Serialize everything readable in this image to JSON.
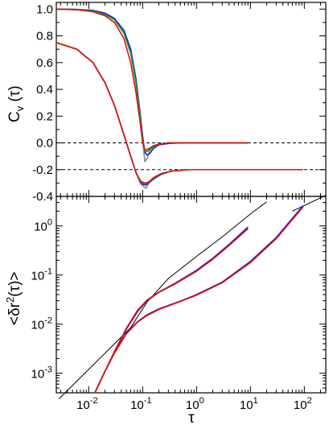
{
  "chart_data": [
    {
      "type": "line",
      "panel": "top",
      "ylabel": "C_v (τ)",
      "ylabel_parts": {
        "main": "C",
        "sub": "v",
        "arg": " (τ)"
      },
      "xscale": "log",
      "xlim": [
        0.0025,
        250
      ],
      "ylim": [
        -0.4,
        1.05
      ],
      "yticks": [
        -0.4,
        -0.2,
        0.0,
        0.2,
        0.4,
        0.6,
        0.8,
        1.0
      ],
      "ytick_labels": [
        "-0.4",
        "-0.2",
        "0.0",
        "0.2",
        "0.4",
        "0.6",
        "0.8",
        "1.0"
      ],
      "reference_lines": [
        {
          "y": 0.0,
          "style": "dashed"
        },
        {
          "y": -0.2,
          "style": "dashed"
        }
      ],
      "groups": [
        {
          "offset": 0.0,
          "tau": [
            0.0025,
            0.006,
            0.012,
            0.02,
            0.03,
            0.045,
            0.06,
            0.075,
            0.09,
            0.1,
            0.11,
            0.12,
            0.135,
            0.16,
            0.2,
            0.3,
            0.5,
            1.0,
            3.0,
            9.0
          ],
          "series": [
            {
              "color": "#888888",
              "values": [
                1.0,
                0.998,
                0.99,
                0.97,
                0.93,
                0.84,
                0.7,
                0.48,
                0.22,
                0.02,
                -0.14,
                -0.12,
                -0.06,
                -0.02,
                -0.01,
                0.0,
                0.0,
                0.0,
                0.0,
                0.0
              ]
            },
            {
              "color": "#1f1fd6",
              "values": [
                1.0,
                0.998,
                0.99,
                0.97,
                0.93,
                0.84,
                0.7,
                0.48,
                0.22,
                0.05,
                -0.07,
                -0.09,
                -0.08,
                -0.04,
                -0.015,
                -0.005,
                0.0,
                0.0,
                0.0,
                0.0
              ]
            },
            {
              "color": "#1a9e1a",
              "values": [
                1.0,
                0.997,
                0.985,
                0.96,
                0.92,
                0.82,
                0.67,
                0.45,
                0.2,
                0.02,
                -0.06,
                -0.065,
                -0.05,
                -0.03,
                -0.01,
                0.0,
                0.0,
                0.0,
                0.0,
                0.0
              ]
            },
            {
              "color": "#e01010",
              "values": [
                1.0,
                0.995,
                0.98,
                0.95,
                0.9,
                0.78,
                0.6,
                0.38,
                0.15,
                0.0,
                -0.05,
                -0.05,
                -0.04,
                -0.02,
                -0.01,
                0.0,
                0.0,
                0.0,
                0.0,
                0.0
              ]
            }
          ]
        },
        {
          "offset": -0.2,
          "tau": [
            0.0025,
            0.006,
            0.012,
            0.02,
            0.03,
            0.045,
            0.06,
            0.075,
            0.09,
            0.1,
            0.115,
            0.13,
            0.16,
            0.22,
            0.35,
            0.7,
            2.0,
            10.0,
            40.0,
            95.0
          ],
          "series": [
            {
              "color": "#888888",
              "values": [
                0.95,
                0.9,
                0.8,
                0.65,
                0.48,
                0.26,
                0.1,
                -0.02,
                -0.1,
                -0.12,
                -0.14,
                -0.1,
                -0.06,
                -0.03,
                -0.01,
                0.0,
                0.0,
                0.0,
                0.0,
                0.0
              ]
            },
            {
              "color": "#1f1fd6",
              "values": [
                0.95,
                0.9,
                0.8,
                0.65,
                0.48,
                0.26,
                0.1,
                -0.02,
                -0.09,
                -0.11,
                -0.115,
                -0.1,
                -0.07,
                -0.035,
                -0.01,
                0.0,
                0.0,
                0.0,
                0.0,
                0.0
              ]
            },
            {
              "color": "#1a9e1a",
              "values": [
                0.95,
                0.9,
                0.8,
                0.65,
                0.48,
                0.26,
                0.1,
                -0.02,
                -0.085,
                -0.1,
                -0.105,
                -0.095,
                -0.065,
                -0.03,
                -0.01,
                0.0,
                0.0,
                0.0,
                0.0,
                0.0
              ]
            },
            {
              "color": "#e01010",
              "values": [
                0.95,
                0.9,
                0.8,
                0.65,
                0.48,
                0.26,
                0.1,
                -0.02,
                -0.08,
                -0.095,
                -0.1,
                -0.09,
                -0.06,
                -0.03,
                -0.01,
                0.0,
                0.0,
                0.0,
                0.0,
                0.0
              ]
            }
          ]
        }
      ]
    },
    {
      "type": "line",
      "panel": "bottom",
      "ylabel": "<δr²(τ)>",
      "ylabel_parts": {
        "pre": "<δr",
        "sup": "2",
        "post": "(τ)>"
      },
      "xlabel": "τ",
      "xscale": "log",
      "yscale": "log",
      "xlim": [
        0.0025,
        250
      ],
      "ylim": [
        0.0004,
        4
      ],
      "xticks": [
        0.01,
        0.1,
        1,
        10,
        100
      ],
      "xtick_labels": [
        {
          "base": "10",
          "exp": "-2"
        },
        {
          "base": "10",
          "exp": "-1"
        },
        {
          "base": "10",
          "exp": "0"
        },
        {
          "base": "10",
          "exp": "1"
        },
        {
          "base": "10",
          "exp": "2"
        }
      ],
      "yticks": [
        0.001,
        0.01,
        0.1,
        1
      ],
      "ytick_labels": [
        {
          "base": "10",
          "exp": "-3"
        },
        {
          "base": "10",
          "exp": "-2"
        },
        {
          "base": "10",
          "exp": "-1"
        },
        {
          "base": "10",
          "exp": "0"
        }
      ],
      "reference_lines": [
        {
          "color": "#000000",
          "x": [
            0.0028,
            0.06,
            0.12,
            0.3,
            1.0,
            3.0,
            10.0,
            20.0
          ],
          "values": [
            0.0003,
            0.0085,
            0.028,
            0.085,
            0.24,
            0.6,
            1.75,
            3.1
          ]
        },
        {
          "color": "#000000",
          "x": [
            60,
            250
          ],
          "values": [
            2.0,
            4.2
          ]
        }
      ],
      "groups": [
        {
          "x": [
            0.013,
            0.02,
            0.03,
            0.05,
            0.08,
            0.12,
            0.2,
            0.4,
            1.0,
            2.0,
            4.0,
            9.0
          ],
          "series": [
            {
              "color": "#888888",
              "values": [
                0.0004,
                0.0011,
                0.0027,
                0.008,
                0.018,
                0.03,
                0.044,
                0.066,
                0.12,
                0.21,
                0.4,
                0.9
              ]
            },
            {
              "color": "#1f1fd6",
              "values": [
                0.0004,
                0.0011,
                0.0027,
                0.008,
                0.018,
                0.03,
                0.045,
                0.068,
                0.125,
                0.22,
                0.42,
                0.95
              ]
            },
            {
              "color": "#e01010",
              "values": [
                0.0004,
                0.0011,
                0.0028,
                0.0083,
                0.019,
                0.031,
                0.045,
                0.066,
                0.12,
                0.21,
                0.4,
                0.88
              ]
            }
          ]
        },
        {
          "x": [
            0.013,
            0.02,
            0.03,
            0.05,
            0.08,
            0.12,
            0.2,
            0.5,
            1.0,
            3.0,
            10.0,
            30.0,
            95.0
          ],
          "series": [
            {
              "color": "#888888",
              "values": [
                0.0004,
                0.0011,
                0.0026,
                0.0065,
                0.011,
                0.015,
                0.02,
                0.029,
                0.039,
                0.07,
                0.18,
                0.55,
                2.5
              ]
            },
            {
              "color": "#1f1fd6",
              "values": [
                0.0004,
                0.0011,
                0.0026,
                0.0066,
                0.0112,
                0.0155,
                0.0205,
                0.0295,
                0.04,
                0.072,
                0.19,
                0.58,
                2.6
              ]
            },
            {
              "color": "#e01010",
              "values": [
                0.0004,
                0.0011,
                0.0026,
                0.0064,
                0.011,
                0.015,
                0.02,
                0.029,
                0.039,
                0.07,
                0.18,
                0.55,
                2.45
              ]
            }
          ]
        }
      ]
    }
  ]
}
